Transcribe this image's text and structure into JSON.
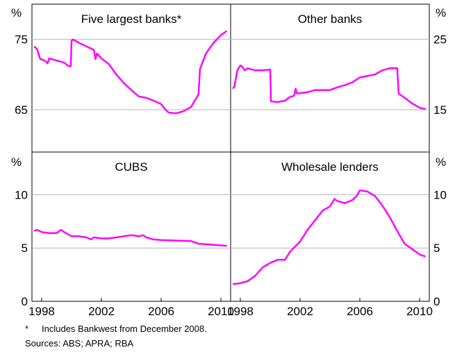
{
  "chart_data": {
    "type": "line",
    "series_color": "#FF00FF",
    "grid": true,
    "x_ticks": [
      1998,
      2002,
      2006,
      2010
    ],
    "panels": [
      {
        "title": "Five largest banks*",
        "position": "top-left",
        "unit": "%",
        "ylim": [
          59,
          80
        ],
        "ticks": [
          65,
          75
        ],
        "points": [
          [
            1997.5,
            74.0
          ],
          [
            1997.7,
            73.6
          ],
          [
            1997.9,
            72.2
          ],
          [
            1998.2,
            72.0
          ],
          [
            1998.4,
            71.6
          ],
          [
            1998.5,
            72.3
          ],
          [
            1999.0,
            72.0
          ],
          [
            1999.5,
            71.7
          ],
          [
            1999.8,
            71.2
          ],
          [
            1999.95,
            71.2
          ],
          [
            2000.0,
            74.8
          ],
          [
            2000.1,
            75.0
          ],
          [
            2000.5,
            74.5
          ],
          [
            2001.0,
            74.0
          ],
          [
            2001.5,
            73.5
          ],
          [
            2001.6,
            72.2
          ],
          [
            2001.7,
            73.0
          ],
          [
            2002.0,
            72.3
          ],
          [
            2002.5,
            71.5
          ],
          [
            2003.0,
            70.0
          ],
          [
            2003.5,
            68.8
          ],
          [
            2004.0,
            67.8
          ],
          [
            2004.5,
            66.9
          ],
          [
            2005.0,
            66.7
          ],
          [
            2005.5,
            66.3
          ],
          [
            2006.0,
            65.8
          ],
          [
            2006.3,
            65.0
          ],
          [
            2006.5,
            64.6
          ],
          [
            2007.0,
            64.5
          ],
          [
            2007.5,
            64.8
          ],
          [
            2008.0,
            65.4
          ],
          [
            2008.5,
            67.2
          ],
          [
            2008.6,
            70.8
          ],
          [
            2009.0,
            73.0
          ],
          [
            2009.5,
            74.5
          ],
          [
            2010.0,
            75.6
          ],
          [
            2010.4,
            76.2
          ]
        ]
      },
      {
        "title": "Other banks",
        "position": "top-right",
        "unit": "%",
        "ylim": [
          9,
          30
        ],
        "ticks": [
          15,
          25
        ],
        "points": [
          [
            1997.5,
            18.0
          ],
          [
            1997.6,
            18.3
          ],
          [
            1997.8,
            20.6
          ],
          [
            1998.0,
            21.3
          ],
          [
            1998.1,
            21.2
          ],
          [
            1998.3,
            20.6
          ],
          [
            1998.5,
            20.9
          ],
          [
            1999.0,
            20.6
          ],
          [
            1999.5,
            20.6
          ],
          [
            2000.0,
            20.7
          ],
          [
            2000.05,
            16.2
          ],
          [
            2000.5,
            16.1
          ],
          [
            2001.0,
            16.3
          ],
          [
            2001.3,
            16.8
          ],
          [
            2001.6,
            17.0
          ],
          [
            2001.7,
            18.0
          ],
          [
            2001.8,
            17.3
          ],
          [
            2002.5,
            17.5
          ],
          [
            2003.0,
            17.8
          ],
          [
            2004.0,
            17.8
          ],
          [
            2004.5,
            18.2
          ],
          [
            2005.0,
            18.5
          ],
          [
            2005.5,
            18.9
          ],
          [
            2006.0,
            19.6
          ],
          [
            2007.0,
            20.0
          ],
          [
            2007.5,
            20.6
          ],
          [
            2008.0,
            20.9
          ],
          [
            2008.5,
            20.9
          ],
          [
            2008.6,
            17.3
          ],
          [
            2009.0,
            16.7
          ],
          [
            2009.5,
            15.9
          ],
          [
            2010.0,
            15.3
          ],
          [
            2010.4,
            15.1
          ]
        ]
      },
      {
        "title": "CUBS",
        "position": "bottom-left",
        "unit": "%",
        "ylim": [
          0,
          14
        ],
        "ticks": [
          0,
          5,
          10
        ],
        "points": [
          [
            1997.5,
            6.6
          ],
          [
            1997.7,
            6.7
          ],
          [
            1998.0,
            6.5
          ],
          [
            1998.5,
            6.4
          ],
          [
            1999.0,
            6.4
          ],
          [
            1999.3,
            6.7
          ],
          [
            1999.5,
            6.5
          ],
          [
            2000.0,
            6.1
          ],
          [
            2000.5,
            6.1
          ],
          [
            2001.0,
            6.0
          ],
          [
            2001.3,
            5.8
          ],
          [
            2001.5,
            6.0
          ],
          [
            2002.0,
            5.9
          ],
          [
            2002.5,
            5.9
          ],
          [
            2003.0,
            6.0
          ],
          [
            2003.5,
            6.1
          ],
          [
            2004.0,
            6.2
          ],
          [
            2004.5,
            6.1
          ],
          [
            2004.8,
            6.2
          ],
          [
            2005.0,
            6.0
          ],
          [
            2005.5,
            5.8
          ],
          [
            2006.0,
            5.75
          ],
          [
            2007.0,
            5.7
          ],
          [
            2008.0,
            5.65
          ],
          [
            2008.5,
            5.4
          ],
          [
            2009.0,
            5.35
          ],
          [
            2009.5,
            5.3
          ],
          [
            2010.0,
            5.25
          ],
          [
            2010.4,
            5.2
          ]
        ]
      },
      {
        "title": "Wholesale lenders",
        "position": "bottom-right",
        "unit": "%",
        "ylim": [
          0,
          14
        ],
        "ticks": [
          0,
          5,
          10
        ],
        "points": [
          [
            1997.5,
            1.6
          ],
          [
            1998.0,
            1.7
          ],
          [
            1998.5,
            1.9
          ],
          [
            1999.0,
            2.4
          ],
          [
            1999.5,
            3.2
          ],
          [
            2000.0,
            3.6
          ],
          [
            2000.5,
            3.9
          ],
          [
            2001.0,
            3.9
          ],
          [
            2001.3,
            4.6
          ],
          [
            2001.5,
            4.9
          ],
          [
            2002.0,
            5.6
          ],
          [
            2002.5,
            6.7
          ],
          [
            2003.0,
            7.6
          ],
          [
            2003.5,
            8.5
          ],
          [
            2004.0,
            8.9
          ],
          [
            2004.3,
            9.6
          ],
          [
            2004.5,
            9.4
          ],
          [
            2005.0,
            9.2
          ],
          [
            2005.5,
            9.5
          ],
          [
            2005.8,
            9.9
          ],
          [
            2006.0,
            10.4
          ],
          [
            2006.5,
            10.3
          ],
          [
            2007.0,
            9.9
          ],
          [
            2007.5,
            9.0
          ],
          [
            2008.0,
            7.9
          ],
          [
            2008.5,
            6.6
          ],
          [
            2009.0,
            5.4
          ],
          [
            2009.5,
            4.9
          ],
          [
            2010.0,
            4.4
          ],
          [
            2010.4,
            4.2
          ]
        ]
      }
    ]
  },
  "notes": {
    "footnote_mark": "*",
    "footnote": "Includes Bankwest from December 2008.",
    "sources": "Sources: ABS; APRA; RBA"
  }
}
